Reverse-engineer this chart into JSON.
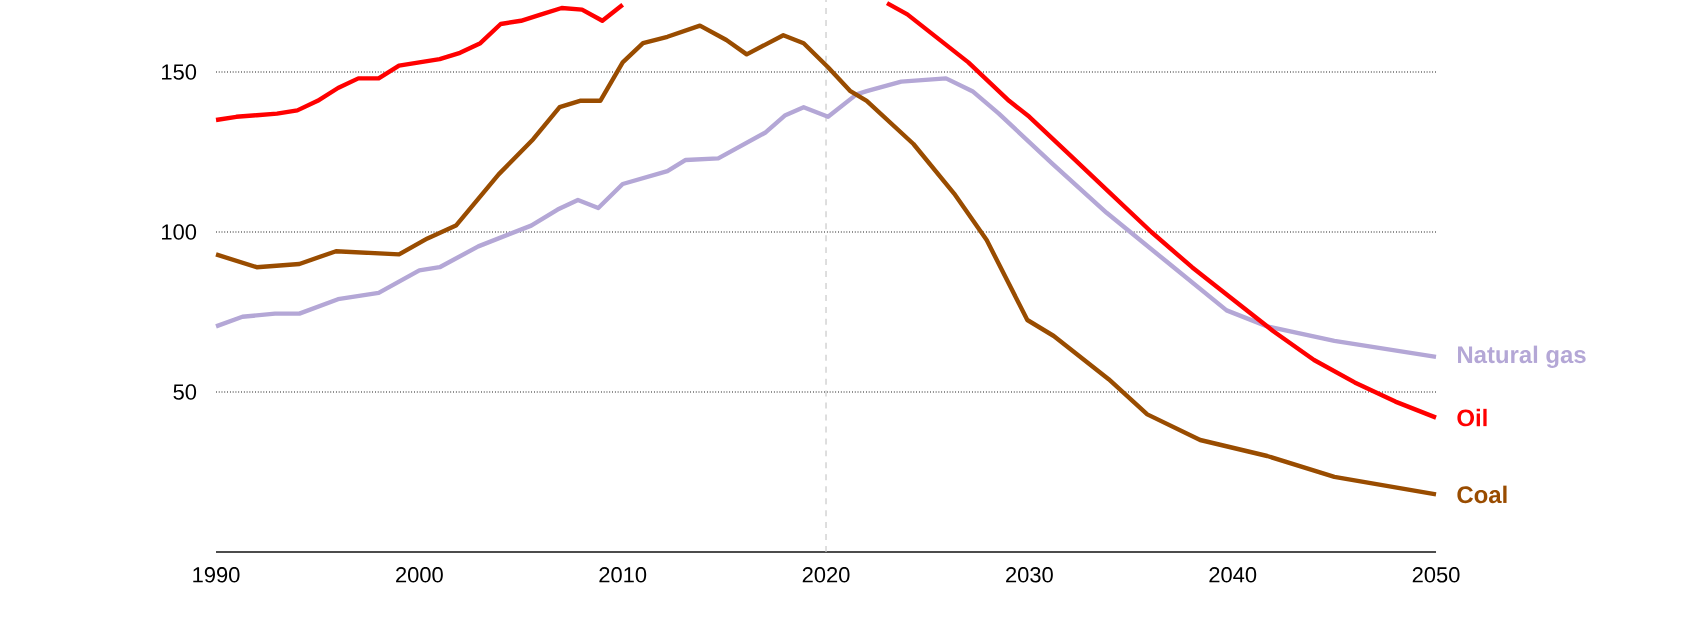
{
  "chart_data": {
    "type": "line",
    "xlim": [
      1990,
      2050
    ],
    "ylim": [
      0,
      172.5
    ],
    "xticks": [
      1990,
      2000,
      2010,
      2020,
      2030,
      2040,
      2050
    ],
    "yticks": [
      50,
      100,
      150
    ],
    "grid": "y",
    "ref_lines": [
      {
        "axis": "x",
        "value": 2020,
        "color": "#c8c8c8",
        "line_style": "dashed"
      }
    ],
    "series": [
      {
        "name": "Natural gas",
        "color": "#b4a7d6",
        "x": [
          1990,
          1991.3,
          1992.9,
          1994.1,
          1996,
          1998,
          2000,
          2001,
          2002.9,
          2005.5,
          2006.8,
          2007.8,
          2008.8,
          2010,
          2012.2,
          2013.1,
          2014.7,
          2017,
          2018,
          2018.9,
          2020.1,
          2021.5,
          2022,
          2023.7,
          2025.9,
          2027.2,
          2028.5,
          2031.1,
          2033.8,
          2036.7,
          2039.7,
          2041.7,
          2045,
          2050
        ],
        "values": [
          70.5,
          73.5,
          74.5,
          74.5,
          79,
          81,
          88,
          89,
          95.5,
          102,
          107,
          110,
          107.5,
          115,
          119,
          122.5,
          123,
          131,
          136.5,
          139,
          136,
          143,
          144,
          147,
          148,
          144,
          137,
          121.5,
          106,
          91,
          75.5,
          70.5,
          66,
          61
        ]
      },
      {
        "name": "Oil",
        "color": "#ff0000",
        "x": [
          1990,
          1991,
          1992,
          1993,
          1994,
          1995,
          1996,
          1997,
          1998,
          1999,
          2000,
          2001,
          2002,
          2003,
          2004,
          2005,
          2006,
          2007,
          2008,
          2009,
          2010,
          2015,
          2023,
          2024,
          2025,
          2026,
          2027,
          2028,
          2029,
          2030,
          2032,
          2034,
          2036,
          2038,
          2040,
          2042,
          2044,
          2046,
          2048,
          2050
        ],
        "values": [
          135,
          136,
          136.5,
          137,
          138,
          141,
          145,
          148,
          148,
          152,
          153,
          154,
          156,
          159,
          165,
          166,
          168,
          170,
          169.5,
          166,
          171,
          null,
          171.5,
          168,
          163,
          158,
          153,
          147,
          141,
          136,
          124,
          112,
          100,
          89,
          79,
          69,
          60,
          53,
          47,
          42
        ]
      },
      {
        "name": "Coal",
        "color": "#994c00",
        "x": [
          1990,
          1992,
          1994.1,
          1995.9,
          1999,
          2000.4,
          2001.8,
          2003.9,
          2005.6,
          2006.9,
          2007.9,
          2008.9,
          2010,
          2011,
          2012.2,
          2013.8,
          2015.1,
          2016.1,
          2017.9,
          2018.9,
          2020.1,
          2021.2,
          2022,
          2024.3,
          2026.3,
          2027.9,
          2029.9,
          2031.2,
          2033.9,
          2035.8,
          2038.4,
          2041.7,
          2045,
          2050
        ],
        "values": [
          93,
          89,
          90,
          94,
          93,
          98,
          102,
          118,
          129,
          139,
          141,
          141,
          153,
          159,
          161,
          164.5,
          160,
          155.5,
          161.5,
          159,
          151.5,
          144,
          141,
          127.5,
          112,
          97.5,
          72.5,
          67.5,
          54,
          43,
          35,
          30,
          23.5,
          18
        ]
      }
    ]
  }
}
